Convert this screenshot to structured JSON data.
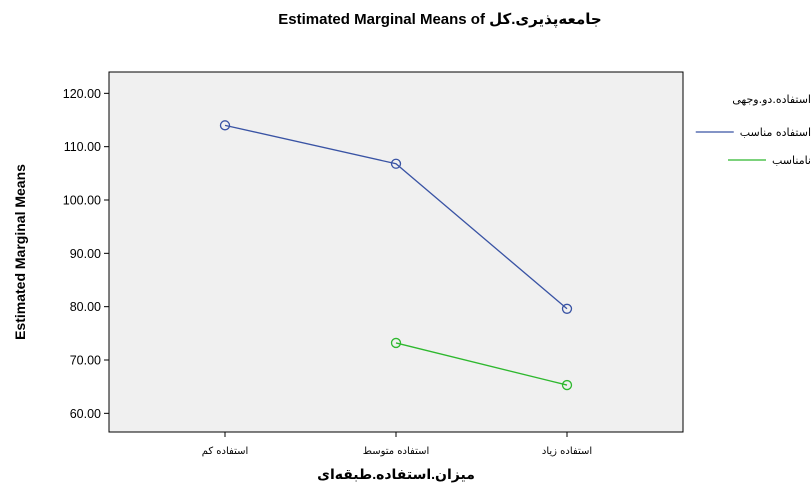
{
  "chart_data": {
    "type": "line",
    "title": "Estimated Marginal Means of جامعه‌پذیری.کل",
    "xlabel": "میزان.استفاده.طبقه‌ای",
    "ylabel": "Estimated Marginal Means",
    "categories": [
      "استفاده کم",
      "استفاده متوسط",
      "استفاده زیاد"
    ],
    "ylim": [
      56.5,
      124
    ],
    "yticks": [
      "60.00",
      "70.00",
      "80.00",
      "90.00",
      "100.00",
      "110.00",
      "120.00"
    ],
    "grid": false,
    "legend": {
      "title": "استفاده.دو.وجهی",
      "placement": "right"
    },
    "series": [
      {
        "name": "استفاده مناسب",
        "color": "#3953a4",
        "values": [
          114.0,
          106.8,
          79.6
        ]
      },
      {
        "name": "نامناسب",
        "color": "#2eb82e",
        "values": [
          null,
          73.2,
          65.3
        ]
      }
    ],
    "plot_background": "#f0f0f0"
  }
}
